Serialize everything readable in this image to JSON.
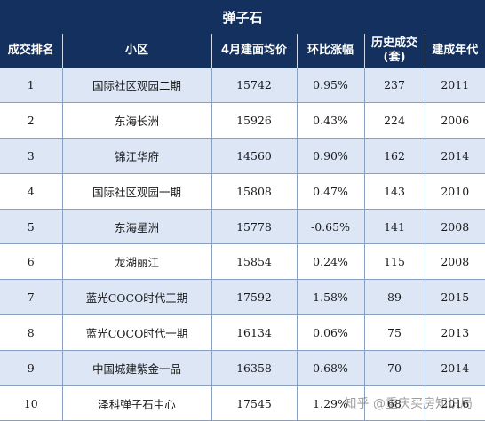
{
  "title": "弹子石",
  "headers": {
    "rank": "成交排名",
    "community": "小区",
    "avg_price": "4月建面均价",
    "mom": "环比涨幅",
    "history_line1": "历史成交",
    "history_line2": "(套)",
    "year": "建成年代"
  },
  "rows": [
    {
      "rank": "1",
      "community": "国际社区观园二期",
      "avg_price": "15742",
      "mom": "0.95%",
      "history": "237",
      "year": "2011"
    },
    {
      "rank": "2",
      "community": "东海长洲",
      "avg_price": "15926",
      "mom": "0.43%",
      "history": "224",
      "year": "2006"
    },
    {
      "rank": "3",
      "community": "锦江华府",
      "avg_price": "14560",
      "mom": "0.90%",
      "history": "162",
      "year": "2014"
    },
    {
      "rank": "4",
      "community": "国际社区观园一期",
      "avg_price": "15808",
      "mom": "0.47%",
      "history": "143",
      "year": "2010"
    },
    {
      "rank": "5",
      "community": "东海星洲",
      "avg_price": "15778",
      "mom": "-0.65%",
      "history": "141",
      "year": "2008"
    },
    {
      "rank": "6",
      "community": "龙湖丽江",
      "avg_price": "15854",
      "mom": "0.24%",
      "history": "115",
      "year": "2008"
    },
    {
      "rank": "7",
      "community": "蓝光COCO时代三期",
      "avg_price": "17592",
      "mom": "1.58%",
      "history": "89",
      "year": "2015"
    },
    {
      "rank": "8",
      "community": "蓝光COCO时代一期",
      "avg_price": "16134",
      "mom": "0.06%",
      "history": "75",
      "year": "2013"
    },
    {
      "rank": "9",
      "community": "中国城建紫金一品",
      "avg_price": "16358",
      "mom": "0.68%",
      "history": "70",
      "year": "2014"
    },
    {
      "rank": "10",
      "community": "泽科弹子石中心",
      "avg_price": "17545",
      "mom": "1.29%",
      "history": "68",
      "year": "2016"
    }
  ],
  "watermark": "知乎 @重庆买房知识局",
  "colors": {
    "header_bg": "#13305e",
    "odd_row_bg": "#dce6f5",
    "even_row_bg": "#ffffff"
  }
}
